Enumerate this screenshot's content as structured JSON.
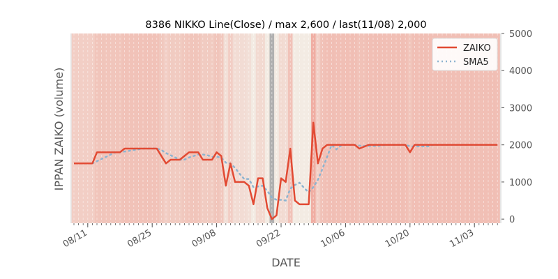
{
  "chart_data": {
    "type": "line",
    "title": "8386 NIKKO Line(Close) / max 2,600 / last(11/08) 2,000",
    "xlabel": "DATE",
    "ylabel": "IPPAN ZAIKO (volume)",
    "ylim": [
      -110,
      5000
    ],
    "y_ticks": [
      0,
      1000,
      2000,
      3000,
      4000,
      5000
    ],
    "x_start_date": "08/08",
    "x_tick_labels": [
      {
        "label": "08/11",
        "day_index": 3
      },
      {
        "label": "08/25",
        "day_index": 17
      },
      {
        "label": "09/08",
        "day_index": 31
      },
      {
        "label": "09/22",
        "day_index": 45
      },
      {
        "label": "10/06",
        "day_index": 59
      },
      {
        "label": "10/20",
        "day_index": 73
      },
      {
        "label": "11/03",
        "day_index": 87
      }
    ],
    "legend": {
      "placement": "top-right",
      "entries": [
        "ZAIKO",
        "SMA5"
      ]
    },
    "grid": true,
    "series": [
      {
        "name": "ZAIKO",
        "color": "#e24a33",
        "style": "solid",
        "values": [
          1500,
          1500,
          1500,
          1500,
          1500,
          1800,
          1800,
          1800,
          1800,
          1800,
          1800,
          1900,
          1900,
          1900,
          1900,
          1900,
          1900,
          1900,
          1900,
          1700,
          1500,
          1600,
          1600,
          1600,
          1700,
          1800,
          1800,
          1800,
          1600,
          1600,
          1600,
          1800,
          1700,
          900,
          1500,
          1000,
          1000,
          1000,
          900,
          400,
          1100,
          1100,
          300,
          0,
          100,
          1100,
          1000,
          1900,
          500,
          400,
          400,
          400,
          2600,
          1500,
          1900,
          2000,
          2000,
          2000,
          2000,
          2000,
          2000,
          2000,
          1900,
          1950,
          2000,
          2000,
          2000,
          2000,
          2000,
          2000,
          2000,
          2000,
          2000,
          1800,
          2000,
          2000,
          2000,
          2000,
          2000,
          2000,
          2000,
          2000,
          2000,
          2000,
          2000,
          2000,
          2000,
          2000,
          2000,
          2000,
          2000,
          2000,
          2000
        ]
      },
      {
        "name": "SMA5",
        "color": "#8eb4d0",
        "style": "dotted",
        "window": 5
      }
    ],
    "colors": {
      "zero_band": "#b0b0b0",
      "edge": "#e5e5e5",
      "low_band": "#f3ebe3",
      "high_band": "#f0aea3"
    }
  }
}
